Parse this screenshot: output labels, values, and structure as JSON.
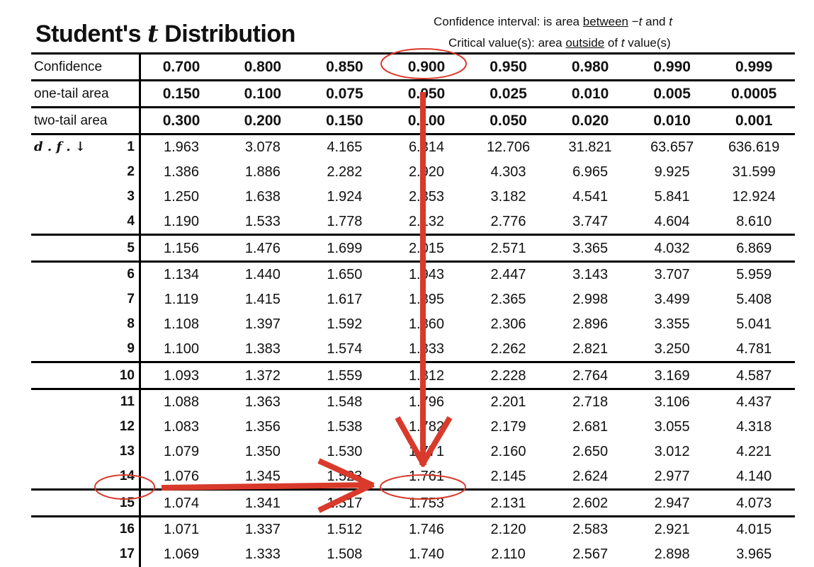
{
  "title": {
    "prefix": "Student's ",
    "t": "t",
    "suffix": " Distribution"
  },
  "notes": {
    "line1": {
      "a": "Confidence interval: is area ",
      "u": "between",
      "b": " −",
      "t1": "t",
      "c": " and ",
      "t2": "t"
    },
    "line2": {
      "a": "Critical value(s): area ",
      "u": "outside",
      "b": " of ",
      "t": "t",
      "c": " value(s)"
    }
  },
  "header_rows": [
    {
      "label": "Confidence",
      "values": [
        "0.700",
        "0.800",
        "0.850",
        "0.900",
        "0.950",
        "0.980",
        "0.990",
        "0.999"
      ]
    },
    {
      "label": "one-tail area",
      "values": [
        "0.150",
        "0.100",
        "0.075",
        "0.050",
        "0.025",
        "0.010",
        "0.005",
        "0.0005"
      ]
    },
    {
      "label": "two-tail area",
      "values": [
        "0.300",
        "0.200",
        "0.150",
        "0.100",
        "0.050",
        "0.020",
        "0.010",
        "0.001"
      ]
    }
  ],
  "df_label": "d . f . ↓",
  "rows": [
    {
      "df": "1",
      "values": [
        "1.963",
        "3.078",
        "4.165",
        "6.314",
        "12.706",
        "31.821",
        "63.657",
        "636.619"
      ]
    },
    {
      "df": "2",
      "values": [
        "1.386",
        "1.886",
        "2.282",
        "2.920",
        "4.303",
        "6.965",
        "9.925",
        "31.599"
      ]
    },
    {
      "df": "3",
      "values": [
        "1.250",
        "1.638",
        "1.924",
        "2.353",
        "3.182",
        "4.541",
        "5.841",
        "12.924"
      ]
    },
    {
      "df": "4",
      "values": [
        "1.190",
        "1.533",
        "1.778",
        "2.132",
        "2.776",
        "3.747",
        "4.604",
        "8.610"
      ]
    },
    {
      "df": "5",
      "values": [
        "1.156",
        "1.476",
        "1.699",
        "2.015",
        "2.571",
        "3.365",
        "4.032",
        "6.869"
      ]
    },
    {
      "df": "6",
      "values": [
        "1.134",
        "1.440",
        "1.650",
        "1.943",
        "2.447",
        "3.143",
        "3.707",
        "5.959"
      ]
    },
    {
      "df": "7",
      "values": [
        "1.119",
        "1.415",
        "1.617",
        "1.895",
        "2.365",
        "2.998",
        "3.499",
        "5.408"
      ]
    },
    {
      "df": "8",
      "values": [
        "1.108",
        "1.397",
        "1.592",
        "1.860",
        "2.306",
        "2.896",
        "3.355",
        "5.041"
      ]
    },
    {
      "df": "9",
      "values": [
        "1.100",
        "1.383",
        "1.574",
        "1.833",
        "2.262",
        "2.821",
        "3.250",
        "4.781"
      ]
    },
    {
      "df": "10",
      "values": [
        "1.093",
        "1.372",
        "1.559",
        "1.812",
        "2.228",
        "2.764",
        "3.169",
        "4.587"
      ]
    },
    {
      "df": "11",
      "values": [
        "1.088",
        "1.363",
        "1.548",
        "1.796",
        "2.201",
        "2.718",
        "3.106",
        "4.437"
      ]
    },
    {
      "df": "12",
      "values": [
        "1.083",
        "1.356",
        "1.538",
        "1.782",
        "2.179",
        "2.681",
        "3.055",
        "4.318"
      ]
    },
    {
      "df": "13",
      "values": [
        "1.079",
        "1.350",
        "1.530",
        "1.771",
        "2.160",
        "2.650",
        "3.012",
        "4.221"
      ]
    },
    {
      "df": "14",
      "values": [
        "1.076",
        "1.345",
        "1.523",
        "1.761",
        "2.145",
        "2.624",
        "2.977",
        "4.140"
      ]
    },
    {
      "df": "15",
      "values": [
        "1.074",
        "1.341",
        "1.517",
        "1.753",
        "2.131",
        "2.602",
        "2.947",
        "4.073"
      ]
    },
    {
      "df": "16",
      "values": [
        "1.071",
        "1.337",
        "1.512",
        "1.746",
        "2.120",
        "2.583",
        "2.921",
        "4.015"
      ]
    },
    {
      "df": "17",
      "values": [
        "1.069",
        "1.333",
        "1.508",
        "1.740",
        "2.110",
        "2.567",
        "2.898",
        "3.965"
      ]
    }
  ],
  "highlight": {
    "confidence": "0.900",
    "df": "15",
    "value": "1.753"
  },
  "colors": {
    "annotation": "#d93a2b",
    "text": "#111111",
    "rules": "#000000"
  }
}
